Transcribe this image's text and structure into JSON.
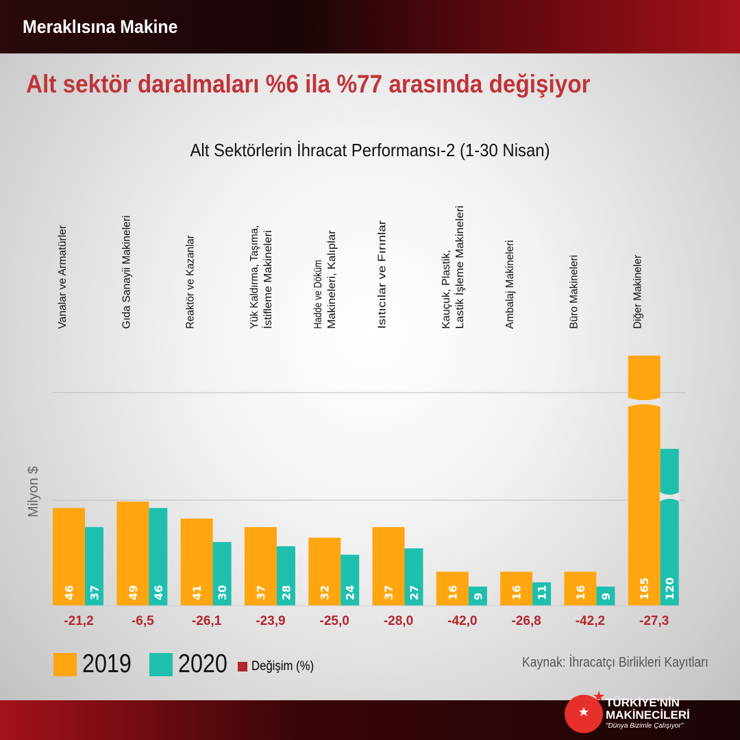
{
  "header": {
    "brand": "Meraklısına Makine",
    "headline": "Alt sektör daralmaları %6 ila %77 arasında değişiyor"
  },
  "chart_data": {
    "type": "bar",
    "title": "Alt Sektörlerin İhracat Performansı-2 (1-30 Nisan)",
    "ylabel": "Milyon $",
    "categories": [
      "Vanalar ve Armatürler",
      "Gıda Sanayii Makineleri",
      "Reaktör ve Kazanlar",
      "Yük Kaldırma, Taşıma, İstifleme Makineleri",
      "Hadde ve Döküm Makineleri, Kalıplar",
      "Isıtıcılar ve Fırınlar",
      "Kauçuk, Plastik, Lastik İşleme  Makineleri",
      "Ambalaj Makineleri",
      "Büro Makineleri",
      "Diğer Makineler"
    ],
    "series": [
      {
        "name": "2019",
        "color": "#ffa50f",
        "values": [
          46,
          49,
          41,
          37,
          32,
          37,
          16,
          16,
          16,
          165
        ]
      },
      {
        "name": "2020",
        "color": "#1fbfae",
        "values": [
          37,
          46,
          30,
          28,
          24,
          27,
          9,
          11,
          9,
          120
        ]
      }
    ],
    "change": {
      "name": "Değişim (%)",
      "color": "#b3262c",
      "values": [
        "-21,2",
        "-6,5",
        "-26,1",
        "-23,9",
        "-25,0",
        "-28,0",
        "-42,0",
        "-26,8",
        "-42,2",
        "-27,3"
      ]
    },
    "axis_break": true,
    "legend": "bottom-left",
    "grid": true
  },
  "source": "Kaynak: İhracatçı Birlikleri Kayıtları",
  "logo": {
    "line1": "TÜRKİYE'NİN",
    "line2": "MAKİNECİLERİ",
    "slogan": "\"Dünya Bizimle Çalışıyor\""
  }
}
